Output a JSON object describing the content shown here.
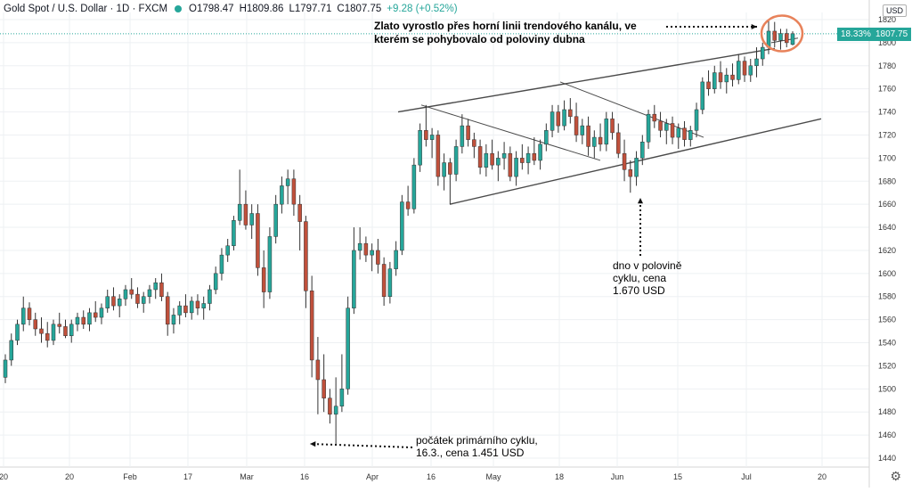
{
  "header": {
    "symbol": "Gold Spot / U.S. Dollar · 1D · FXCM",
    "open": "O1798.47",
    "high": "H1809.86",
    "low": "L1797.71",
    "close": "C1807.75",
    "change": "+9.28 (+0.52%)"
  },
  "currency_label": "USD",
  "price_tags": {
    "percent": "18.33%",
    "last": "1807.75"
  },
  "annotations": {
    "breakout_line1": "Zlato vyrostlo přes horní linii trendového kanálu, ve",
    "breakout_line2": "kterém se pohybovalo od poloviny dubna",
    "midcycle_line1": "dno v polovině",
    "midcycle_line2": "cyklu, cena",
    "midcycle_line3": "1.670 USD",
    "primary_line1": "počátek primárního cyklu,",
    "primary_line2": "16.3., cena 1.451 USD"
  },
  "colors": {
    "up": "#26a69a",
    "down": "#c0503b",
    "grid": "#eef0f3",
    "trendline": "#4a4a4a",
    "highlight_circle": "#e8825a",
    "price_line": "#26a69a"
  },
  "settings_icon": "gear-icon",
  "chart_data": {
    "type": "candlestick",
    "instrument": "Gold Spot / U.S. Dollar",
    "timeframe": "1D",
    "ylim": [
      1430,
      1830
    ],
    "y_ticks": [
      1440,
      1460,
      1480,
      1500,
      1520,
      1540,
      1560,
      1580,
      1600,
      1620,
      1640,
      1660,
      1680,
      1700,
      1720,
      1740,
      1760,
      1780,
      1800,
      1820
    ],
    "x_ticks": [
      "20",
      "20",
      "Feb",
      "17",
      "Mar",
      "16",
      "Apr",
      "16",
      "May",
      "18",
      "Jun",
      "15",
      "Jul",
      "20"
    ],
    "last_price": 1807.75,
    "candles": [
      {
        "o": 1510,
        "h": 1530,
        "l": 1505,
        "c": 1525
      },
      {
        "o": 1525,
        "h": 1548,
        "l": 1520,
        "c": 1542
      },
      {
        "o": 1542,
        "h": 1560,
        "l": 1538,
        "c": 1556
      },
      {
        "o": 1556,
        "h": 1580,
        "l": 1550,
        "c": 1570
      },
      {
        "o": 1570,
        "h": 1575,
        "l": 1555,
        "c": 1560
      },
      {
        "o": 1560,
        "h": 1566,
        "l": 1546,
        "c": 1552
      },
      {
        "o": 1552,
        "h": 1562,
        "l": 1540,
        "c": 1548
      },
      {
        "o": 1548,
        "h": 1558,
        "l": 1536,
        "c": 1542
      },
      {
        "o": 1542,
        "h": 1560,
        "l": 1538,
        "c": 1556
      },
      {
        "o": 1556,
        "h": 1566,
        "l": 1548,
        "c": 1554
      },
      {
        "o": 1554,
        "h": 1560,
        "l": 1544,
        "c": 1546
      },
      {
        "o": 1546,
        "h": 1560,
        "l": 1540,
        "c": 1556
      },
      {
        "o": 1556,
        "h": 1566,
        "l": 1550,
        "c": 1562
      },
      {
        "o": 1562,
        "h": 1568,
        "l": 1552,
        "c": 1556
      },
      {
        "o": 1556,
        "h": 1570,
        "l": 1550,
        "c": 1566
      },
      {
        "o": 1566,
        "h": 1576,
        "l": 1558,
        "c": 1562
      },
      {
        "o": 1562,
        "h": 1574,
        "l": 1556,
        "c": 1570
      },
      {
        "o": 1570,
        "h": 1586,
        "l": 1566,
        "c": 1580
      },
      {
        "o": 1580,
        "h": 1588,
        "l": 1568,
        "c": 1572
      },
      {
        "o": 1572,
        "h": 1582,
        "l": 1562,
        "c": 1578
      },
      {
        "o": 1578,
        "h": 1590,
        "l": 1572,
        "c": 1586
      },
      {
        "o": 1586,
        "h": 1596,
        "l": 1578,
        "c": 1582
      },
      {
        "o": 1582,
        "h": 1588,
        "l": 1570,
        "c": 1574
      },
      {
        "o": 1574,
        "h": 1584,
        "l": 1566,
        "c": 1580
      },
      {
        "o": 1580,
        "h": 1590,
        "l": 1574,
        "c": 1586
      },
      {
        "o": 1586,
        "h": 1596,
        "l": 1578,
        "c": 1592
      },
      {
        "o": 1592,
        "h": 1600,
        "l": 1576,
        "c": 1580
      },
      {
        "o": 1580,
        "h": 1584,
        "l": 1546,
        "c": 1556
      },
      {
        "o": 1556,
        "h": 1570,
        "l": 1548,
        "c": 1564
      },
      {
        "o": 1564,
        "h": 1576,
        "l": 1556,
        "c": 1572
      },
      {
        "o": 1572,
        "h": 1582,
        "l": 1562,
        "c": 1566
      },
      {
        "o": 1566,
        "h": 1580,
        "l": 1560,
        "c": 1576
      },
      {
        "o": 1576,
        "h": 1582,
        "l": 1564,
        "c": 1570
      },
      {
        "o": 1570,
        "h": 1580,
        "l": 1560,
        "c": 1574
      },
      {
        "o": 1574,
        "h": 1590,
        "l": 1568,
        "c": 1586
      },
      {
        "o": 1586,
        "h": 1606,
        "l": 1582,
        "c": 1600
      },
      {
        "o": 1600,
        "h": 1622,
        "l": 1594,
        "c": 1616
      },
      {
        "o": 1616,
        "h": 1630,
        "l": 1610,
        "c": 1624
      },
      {
        "o": 1624,
        "h": 1650,
        "l": 1620,
        "c": 1646
      },
      {
        "o": 1646,
        "h": 1690,
        "l": 1642,
        "c": 1660
      },
      {
        "o": 1660,
        "h": 1672,
        "l": 1638,
        "c": 1642
      },
      {
        "o": 1642,
        "h": 1660,
        "l": 1630,
        "c": 1652
      },
      {
        "o": 1652,
        "h": 1660,
        "l": 1598,
        "c": 1605
      },
      {
        "o": 1605,
        "h": 1620,
        "l": 1570,
        "c": 1584
      },
      {
        "o": 1584,
        "h": 1640,
        "l": 1578,
        "c": 1632
      },
      {
        "o": 1632,
        "h": 1668,
        "l": 1626,
        "c": 1660
      },
      {
        "o": 1660,
        "h": 1684,
        "l": 1652,
        "c": 1676
      },
      {
        "o": 1676,
        "h": 1690,
        "l": 1660,
        "c": 1682
      },
      {
        "o": 1682,
        "h": 1690,
        "l": 1650,
        "c": 1660
      },
      {
        "o": 1660,
        "h": 1668,
        "l": 1620,
        "c": 1645
      },
      {
        "o": 1645,
        "h": 1650,
        "l": 1570,
        "c": 1585
      },
      {
        "o": 1585,
        "h": 1598,
        "l": 1510,
        "c": 1525
      },
      {
        "o": 1525,
        "h": 1545,
        "l": 1478,
        "c": 1508
      },
      {
        "o": 1508,
        "h": 1530,
        "l": 1480,
        "c": 1492
      },
      {
        "o": 1492,
        "h": 1500,
        "l": 1470,
        "c": 1478
      },
      {
        "o": 1478,
        "h": 1510,
        "l": 1451,
        "c": 1485
      },
      {
        "o": 1485,
        "h": 1530,
        "l": 1480,
        "c": 1500
      },
      {
        "o": 1500,
        "h": 1580,
        "l": 1495,
        "c": 1570
      },
      {
        "o": 1570,
        "h": 1640,
        "l": 1565,
        "c": 1620
      },
      {
        "o": 1620,
        "h": 1640,
        "l": 1612,
        "c": 1626
      },
      {
        "o": 1626,
        "h": 1632,
        "l": 1610,
        "c": 1616
      },
      {
        "o": 1616,
        "h": 1626,
        "l": 1602,
        "c": 1620
      },
      {
        "o": 1620,
        "h": 1630,
        "l": 1600,
        "c": 1608
      },
      {
        "o": 1608,
        "h": 1614,
        "l": 1572,
        "c": 1580
      },
      {
        "o": 1580,
        "h": 1610,
        "l": 1574,
        "c": 1604
      },
      {
        "o": 1604,
        "h": 1628,
        "l": 1598,
        "c": 1620
      },
      {
        "o": 1620,
        "h": 1668,
        "l": 1616,
        "c": 1662
      },
      {
        "o": 1662,
        "h": 1676,
        "l": 1650,
        "c": 1656
      },
      {
        "o": 1656,
        "h": 1700,
        "l": 1652,
        "c": 1694
      },
      {
        "o": 1694,
        "h": 1730,
        "l": 1688,
        "c": 1724
      },
      {
        "o": 1724,
        "h": 1746,
        "l": 1710,
        "c": 1716
      },
      {
        "o": 1716,
        "h": 1726,
        "l": 1700,
        "c": 1720
      },
      {
        "o": 1720,
        "h": 1724,
        "l": 1676,
        "c": 1684
      },
      {
        "o": 1684,
        "h": 1704,
        "l": 1672,
        "c": 1696
      },
      {
        "o": 1696,
        "h": 1700,
        "l": 1660,
        "c": 1686
      },
      {
        "o": 1686,
        "h": 1716,
        "l": 1680,
        "c": 1710
      },
      {
        "o": 1710,
        "h": 1738,
        "l": 1704,
        "c": 1728
      },
      {
        "o": 1728,
        "h": 1734,
        "l": 1710,
        "c": 1716
      },
      {
        "o": 1716,
        "h": 1722,
        "l": 1700,
        "c": 1710
      },
      {
        "o": 1710,
        "h": 1716,
        "l": 1686,
        "c": 1692
      },
      {
        "o": 1692,
        "h": 1712,
        "l": 1684,
        "c": 1704
      },
      {
        "o": 1704,
        "h": 1716,
        "l": 1690,
        "c": 1694
      },
      {
        "o": 1694,
        "h": 1706,
        "l": 1680,
        "c": 1700
      },
      {
        "o": 1700,
        "h": 1714,
        "l": 1690,
        "c": 1704
      },
      {
        "o": 1704,
        "h": 1710,
        "l": 1680,
        "c": 1684
      },
      {
        "o": 1684,
        "h": 1706,
        "l": 1676,
        "c": 1700
      },
      {
        "o": 1700,
        "h": 1712,
        "l": 1690,
        "c": 1696
      },
      {
        "o": 1696,
        "h": 1710,
        "l": 1686,
        "c": 1704
      },
      {
        "o": 1704,
        "h": 1718,
        "l": 1694,
        "c": 1698
      },
      {
        "o": 1698,
        "h": 1716,
        "l": 1690,
        "c": 1712
      },
      {
        "o": 1712,
        "h": 1730,
        "l": 1706,
        "c": 1724
      },
      {
        "o": 1724,
        "h": 1746,
        "l": 1718,
        "c": 1740
      },
      {
        "o": 1740,
        "h": 1746,
        "l": 1722,
        "c": 1728
      },
      {
        "o": 1728,
        "h": 1750,
        "l": 1724,
        "c": 1742
      },
      {
        "o": 1742,
        "h": 1752,
        "l": 1730,
        "c": 1736
      },
      {
        "o": 1736,
        "h": 1748,
        "l": 1714,
        "c": 1720
      },
      {
        "o": 1720,
        "h": 1734,
        "l": 1712,
        "c": 1728
      },
      {
        "o": 1728,
        "h": 1736,
        "l": 1702,
        "c": 1710
      },
      {
        "o": 1710,
        "h": 1724,
        "l": 1700,
        "c": 1718
      },
      {
        "o": 1718,
        "h": 1730,
        "l": 1706,
        "c": 1712
      },
      {
        "o": 1712,
        "h": 1740,
        "l": 1706,
        "c": 1734
      },
      {
        "o": 1734,
        "h": 1740,
        "l": 1716,
        "c": 1722
      },
      {
        "o": 1722,
        "h": 1730,
        "l": 1700,
        "c": 1704
      },
      {
        "o": 1704,
        "h": 1716,
        "l": 1680,
        "c": 1690
      },
      {
        "o": 1690,
        "h": 1698,
        "l": 1670,
        "c": 1684
      },
      {
        "o": 1684,
        "h": 1706,
        "l": 1676,
        "c": 1700
      },
      {
        "o": 1700,
        "h": 1720,
        "l": 1694,
        "c": 1714
      },
      {
        "o": 1714,
        "h": 1742,
        "l": 1708,
        "c": 1738
      },
      {
        "o": 1738,
        "h": 1746,
        "l": 1726,
        "c": 1732
      },
      {
        "o": 1732,
        "h": 1740,
        "l": 1718,
        "c": 1724
      },
      {
        "o": 1724,
        "h": 1734,
        "l": 1712,
        "c": 1730
      },
      {
        "o": 1730,
        "h": 1736,
        "l": 1712,
        "c": 1718
      },
      {
        "o": 1718,
        "h": 1730,
        "l": 1708,
        "c": 1726
      },
      {
        "o": 1726,
        "h": 1732,
        "l": 1710,
        "c": 1716
      },
      {
        "o": 1716,
        "h": 1728,
        "l": 1710,
        "c": 1724
      },
      {
        "o": 1724,
        "h": 1748,
        "l": 1718,
        "c": 1742
      },
      {
        "o": 1742,
        "h": 1770,
        "l": 1738,
        "c": 1766
      },
      {
        "o": 1766,
        "h": 1776,
        "l": 1754,
        "c": 1760
      },
      {
        "o": 1760,
        "h": 1780,
        "l": 1756,
        "c": 1774
      },
      {
        "o": 1774,
        "h": 1784,
        "l": 1760,
        "c": 1766
      },
      {
        "o": 1766,
        "h": 1778,
        "l": 1756,
        "c": 1772
      },
      {
        "o": 1772,
        "h": 1782,
        "l": 1762,
        "c": 1768
      },
      {
        "o": 1768,
        "h": 1790,
        "l": 1764,
        "c": 1784
      },
      {
        "o": 1784,
        "h": 1788,
        "l": 1766,
        "c": 1772
      },
      {
        "o": 1772,
        "h": 1786,
        "l": 1766,
        "c": 1780
      },
      {
        "o": 1780,
        "h": 1796,
        "l": 1770,
        "c": 1786
      },
      {
        "o": 1786,
        "h": 1800,
        "l": 1780,
        "c": 1796
      },
      {
        "o": 1796,
        "h": 1820,
        "l": 1790,
        "c": 1810
      },
      {
        "o": 1810,
        "h": 1818,
        "l": 1796,
        "c": 1802
      },
      {
        "o": 1802,
        "h": 1812,
        "l": 1794,
        "c": 1808
      },
      {
        "o": 1808,
        "h": 1812,
        "l": 1796,
        "c": 1800
      },
      {
        "o": 1798.47,
        "h": 1809.86,
        "l": 1797.71,
        "c": 1807.75
      }
    ]
  }
}
